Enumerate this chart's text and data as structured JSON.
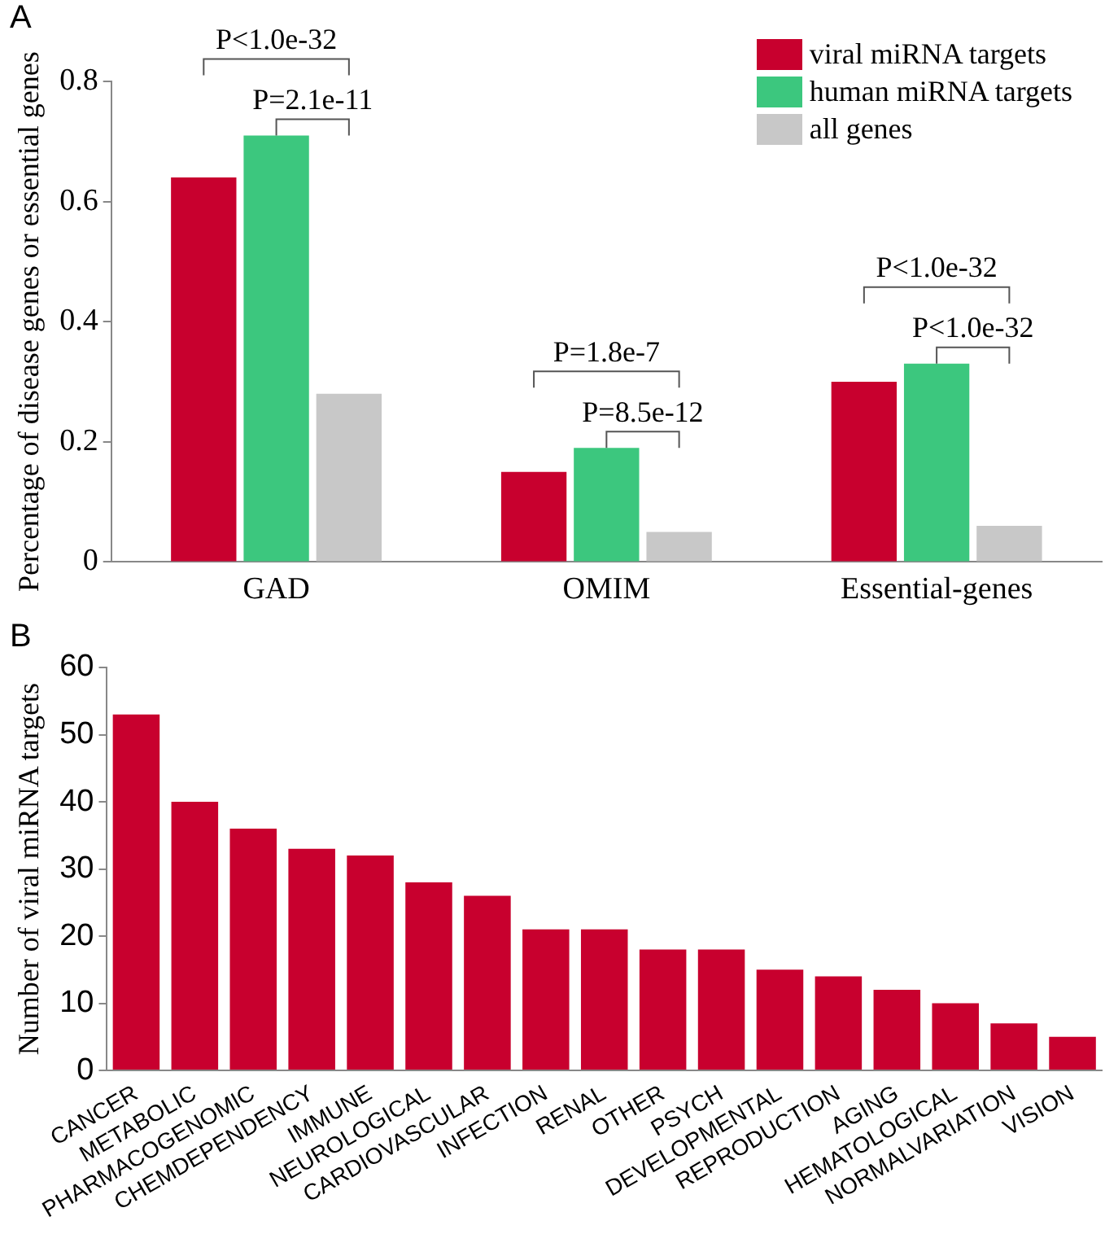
{
  "chart_data": [
    {
      "type": "bar",
      "title": "A",
      "ylabel": "Percentage of disease genes or essential genes",
      "categories": [
        "GAD",
        "OMIM",
        "Essential-genes"
      ],
      "series": [
        {
          "name": "viral miRNA targets",
          "color": "#c8002e",
          "values": [
            0.64,
            0.15,
            0.3
          ]
        },
        {
          "name": "human miRNA targets",
          "color": "#3cc77e",
          "values": [
            0.71,
            0.19,
            0.33
          ]
        },
        {
          "name": "all genes",
          "color": "#c8c8c8",
          "values": [
            0.28,
            0.05,
            0.06
          ]
        }
      ],
      "ylim": [
        0,
        0.8
      ],
      "yticks": [
        0,
        0.2,
        0.4,
        0.6,
        0.8
      ],
      "grid": false,
      "legend": "top right",
      "annotations": [
        "P<1.0e-32",
        "P=2.1e-11",
        "P=1.8e-7",
        "P=8.5e-12",
        "P<1.0e-32",
        "P<1.0e-32"
      ]
    },
    {
      "type": "bar",
      "title": "B",
      "ylabel": "Number of viral miRNA targets",
      "categories": [
        "CANCER",
        "METABOLIC",
        "PHARMACOGENOMIC",
        "CHEMDEPENDENCY",
        "IMMUNE",
        "NEUROLOGICAL",
        "CARDIOVASCULAR",
        "INFECTION",
        "RENAL",
        "OTHER",
        "PSYCH",
        "DEVELOPMENTAL",
        "REPRODUCTION",
        "AGING",
        "HEMATOLOGICAL",
        "NORMALVARIATION",
        "VISION"
      ],
      "values": [
        53,
        40,
        36,
        33,
        32,
        28,
        26,
        21,
        21,
        18,
        18,
        15,
        14,
        12,
        10,
        7,
        5
      ],
      "color": "#c8002e",
      "ylim": [
        0,
        60
      ],
      "yticks": [
        0,
        10,
        20,
        30,
        40,
        50,
        60
      ],
      "grid": false
    }
  ]
}
